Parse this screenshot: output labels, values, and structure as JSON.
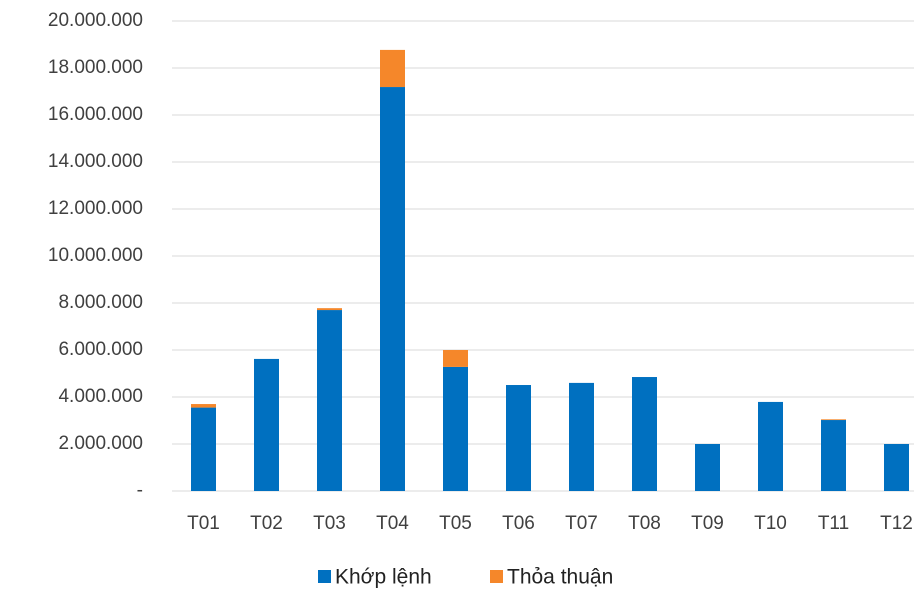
{
  "chart_data": {
    "type": "stacked_bar",
    "categories": [
      "T01",
      "T02",
      "T03",
      "T04",
      "T05",
      "T06",
      "T07",
      "T08",
      "T09",
      "T10",
      "T11",
      "T12"
    ],
    "series": [
      {
        "name": "Khớp lệnh",
        "color": "#0070c0",
        "values": [
          3550000,
          5620000,
          7700000,
          17190000,
          5280000,
          4510000,
          4600000,
          4850000,
          2000000,
          3790000,
          3020000,
          2000000
        ]
      },
      {
        "name": "Thỏa thuận",
        "color": "#f5872a",
        "values": [
          150000,
          0,
          80000,
          1580000,
          720000,
          0,
          0,
          0,
          0,
          0,
          30000,
          0
        ]
      }
    ],
    "ylim": [
      0,
      20000000
    ],
    "yticks": [
      {
        "value": 0,
        "label": "-"
      },
      {
        "value": 2000000,
        "label": "2.000.000"
      },
      {
        "value": 4000000,
        "label": "4.000.000"
      },
      {
        "value": 6000000,
        "label": "6.000.000"
      },
      {
        "value": 8000000,
        "label": "8.000.000"
      },
      {
        "value": 10000000,
        "label": "10.000.000"
      },
      {
        "value": 12000000,
        "label": "12.000.000"
      },
      {
        "value": 14000000,
        "label": "14.000.000"
      },
      {
        "value": 16000000,
        "label": "16.000.000"
      },
      {
        "value": 18000000,
        "label": "18.000.000"
      },
      {
        "value": 20000000,
        "label": "20.000.000"
      }
    ],
    "grid": true,
    "legend": "bottom"
  }
}
